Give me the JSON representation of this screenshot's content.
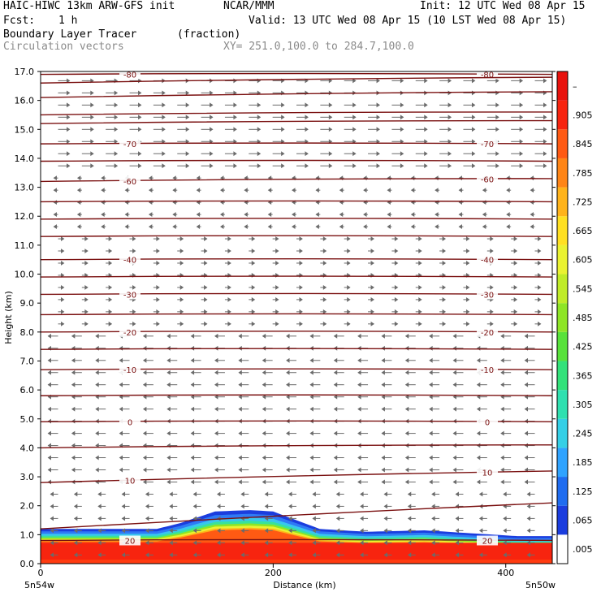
{
  "header": {
    "title_left": "HAIC-HIWC 13km ARW-GFS init",
    "title_org": "NCAR/MMM",
    "init": "Init: 12 UTC Wed 08 Apr 15",
    "fcst_label": "Fcst:",
    "fcst_value": "1 h",
    "valid": "Valid: 13 UTC Wed 08 Apr 15 (10 LST Wed 08 Apr 15)",
    "field_name": "Boundary Layer Tracer",
    "field_units": "(fraction)",
    "vectors_label": "Circulation vectors",
    "xy_range": "XY= 251.0,100.0 to 284.7,100.0"
  },
  "chart_data": {
    "type": "heatmap",
    "xlabel": "Distance (km)",
    "ylabel": "Height (km)",
    "xlim": [
      0,
      440
    ],
    "ylim": [
      0,
      17
    ],
    "x_ticks": [
      "0",
      "200",
      "400"
    ],
    "x_end_labels": [
      "5n54w",
      "5n50w"
    ],
    "y_ticks": [
      "0.0",
      "1.0",
      "2.0",
      "3.0",
      "4.0",
      "5.0",
      "6.0",
      "7.0",
      "8.0",
      "9.0",
      "10.0",
      "11.0",
      "12.0",
      "13.0",
      "14.0",
      "15.0",
      "16.0",
      "17.0"
    ],
    "colorbar": {
      "labels": [
        ".005",
        ".065",
        ".125",
        ".185",
        ".245",
        ".305",
        ".365",
        ".425",
        ".485",
        ".545",
        ".605",
        ".665",
        ".725",
        ".785",
        ".845",
        ".905",
        "–"
      ],
      "colors": [
        "#ffffff",
        "#1b3dde",
        "#1f6cf0",
        "#2fa3ff",
        "#34cfe6",
        "#2fe0b0",
        "#33e27a",
        "#58e23a",
        "#8ee526",
        "#c0ec28",
        "#eaf231",
        "#ffe021",
        "#ffb31a",
        "#ff8516",
        "#ff5a13",
        "#f7240f",
        "#e8120d"
      ]
    },
    "temperature_contours": [
      {
        "label": "-80",
        "left_km": 16.9,
        "right_km": 16.9
      },
      {
        "label": "",
        "left_km": 16.6,
        "right_km": 16.8
      },
      {
        "label": "",
        "left_km": 16.1,
        "right_km": 16.3
      },
      {
        "label": "",
        "left_km": 15.5,
        "right_km": 15.6
      },
      {
        "label": "",
        "left_km": 15.2,
        "right_km": 15.3
      },
      {
        "label": "-70",
        "left_km": 14.5,
        "right_km": 14.5
      },
      {
        "label": "",
        "left_km": 13.9,
        "right_km": 13.9
      },
      {
        "label": "-60",
        "left_km": 13.2,
        "right_km": 13.3
      },
      {
        "label": "",
        "left_km": 12.5,
        "right_km": 12.5
      },
      {
        "label": "",
        "left_km": 11.9,
        "right_km": 11.9
      },
      {
        "label": "",
        "left_km": 11.3,
        "right_km": 11.3
      },
      {
        "label": "-40",
        "left_km": 10.5,
        "right_km": 10.5
      },
      {
        "label": "",
        "left_km": 9.9,
        "right_km": 9.9
      },
      {
        "label": "-30",
        "left_km": 9.3,
        "right_km": 9.3
      },
      {
        "label": "",
        "left_km": 8.6,
        "right_km": 8.6
      },
      {
        "label": "-20",
        "left_km": 8.0,
        "right_km": 8.0
      },
      {
        "label": "",
        "left_km": 7.4,
        "right_km": 7.4
      },
      {
        "label": "-10",
        "left_km": 6.7,
        "right_km": 6.7
      },
      {
        "label": "",
        "left_km": 5.8,
        "right_km": 5.8
      },
      {
        "label": "0",
        "left_km": 4.9,
        "right_km": 4.9
      },
      {
        "label": "",
        "left_km": 4.0,
        "right_km": 4.1
      },
      {
        "label": "10",
        "left_km": 2.8,
        "right_km": 3.2
      },
      {
        "label": "",
        "left_km": 1.2,
        "right_km": 2.1
      },
      {
        "label": "20",
        "left_km": 0.8,
        "right_km": 0.8
      }
    ],
    "tracer_surface_km": [
      [
        0,
        1.2
      ],
      [
        100,
        1.2
      ],
      [
        120,
        1.4
      ],
      [
        150,
        1.8
      ],
      [
        180,
        1.85
      ],
      [
        200,
        1.8
      ],
      [
        220,
        1.5
      ],
      [
        240,
        1.2
      ],
      [
        280,
        1.1
      ],
      [
        330,
        1.15
      ],
      [
        370,
        1.05
      ],
      [
        410,
        0.95
      ],
      [
        440,
        0.95
      ]
    ]
  }
}
